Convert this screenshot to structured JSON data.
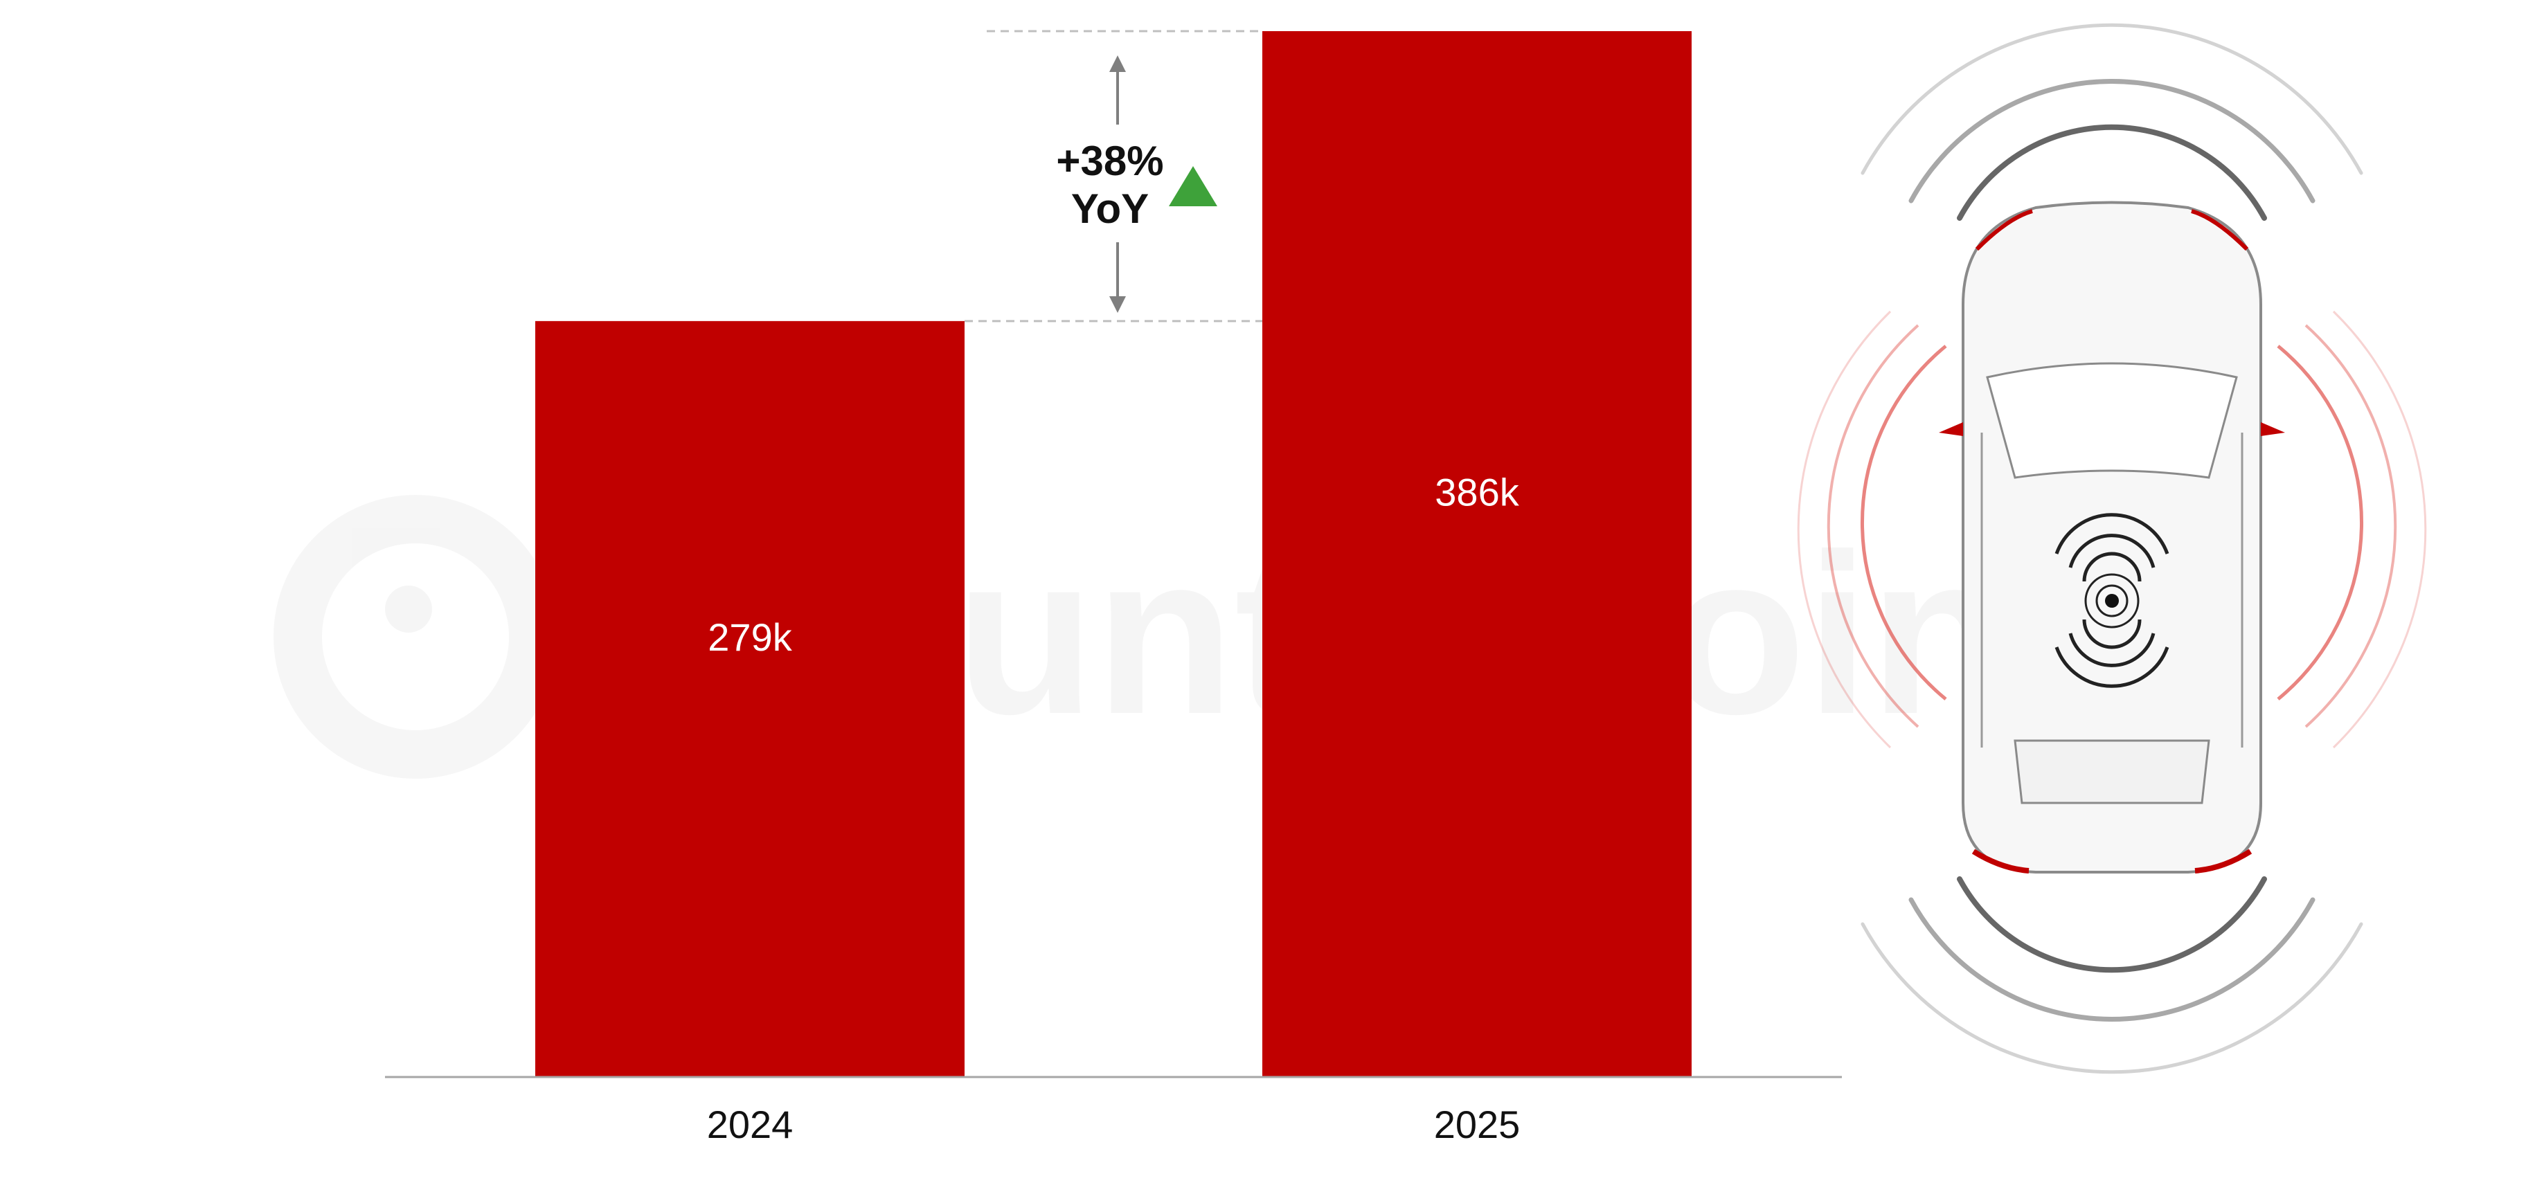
{
  "chart_data": {
    "type": "bar",
    "categories": [
      "2024",
      "2025"
    ],
    "values": [
      279,
      386
    ],
    "value_labels": [
      "279k",
      "386k"
    ],
    "title": "",
    "xlabel": "",
    "ylabel": "",
    "ylim": [
      0,
      386
    ],
    "grid": false,
    "legend": "none",
    "annotation": {
      "change": "+38%",
      "period": "YoY",
      "direction": "up"
    }
  },
  "watermark": "Counterpoint",
  "illustration": "car-top-view-with-sensor-waves-icon",
  "colors": {
    "bar": "#c00000",
    "axis": "#a6a6a6",
    "dashed_guide": "#bfbfbf",
    "arrow": "#7f7f7f",
    "up_triangle": "#3ea23a",
    "value_text": "#ffffff",
    "category_text": "#111111"
  }
}
